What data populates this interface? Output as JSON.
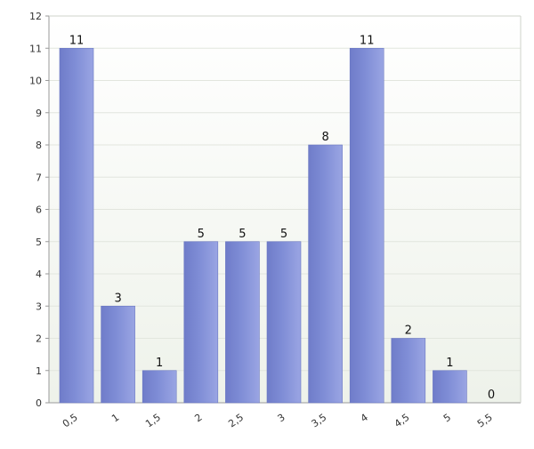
{
  "chart_data": {
    "type": "bar",
    "categories": [
      "0,5",
      "1",
      "1,5",
      "2",
      "2,5",
      "3",
      "3,5",
      "4",
      "4,5",
      "5",
      "5,5"
    ],
    "values": [
      11,
      3,
      1,
      5,
      5,
      5,
      8,
      11,
      2,
      1,
      0
    ],
    "data_labels": [
      "11",
      "3",
      "1",
      "5",
      "5",
      "5",
      "8",
      "11",
      "2",
      "1",
      "0"
    ],
    "y_ticks": [
      "0",
      "1",
      "2",
      "3",
      "4",
      "5",
      "6",
      "7",
      "8",
      "9",
      "10",
      "11",
      "12"
    ],
    "title": "",
    "xlabel": "",
    "ylabel": "",
    "ylim": [
      0,
      12
    ],
    "grid": true,
    "legend": "none",
    "colors": {
      "bar_fill": "#7f8dd6",
      "bar_fill_dark": "#6f7cc9",
      "bar_fill_light": "#9aa5e3",
      "plot_bg_top": "#ffffff",
      "plot_bg_bottom": "#eef2ea",
      "grid": "#e2e6de",
      "axis": "#9a9a9a"
    }
  }
}
